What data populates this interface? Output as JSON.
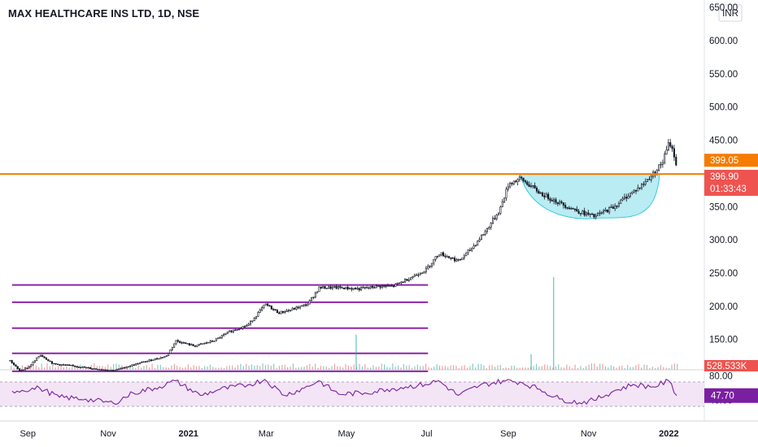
{
  "header": {
    "title": "MAX HEALTHCARE INS LTD, 1D, NSE"
  },
  "axis": {
    "currency": "INR"
  },
  "price_tags": {
    "level": "399.05",
    "last": "396.90",
    "countdown": "01:33:43",
    "volume": "528.533K"
  },
  "colors": {
    "up": "#26a69a",
    "down": "#ef5350",
    "candle": "#131722",
    "resistance": "#f57c00",
    "support": "#8e24aa",
    "cup_fill": "#b2ebf2",
    "cup_line": "#26c6da",
    "rsi": "#7b1fa2",
    "rsi_band": "#f3e5f5",
    "last_tag": "#ef5350",
    "level_tag": "#f57c00"
  },
  "chart_data": [
    {
      "type": "candlestick",
      "title": "MAX HEALTHCARE INS LTD, 1D, NSE",
      "ylim": [
        70,
        660
      ],
      "y_ticks": [
        "650.00",
        "600.00",
        "550.00",
        "500.00",
        "450.00",
        "400.00",
        "350.00",
        "300.00",
        "250.00",
        "200.00",
        "150.00",
        "100.00"
      ],
      "x_ticks": [
        {
          "label": "Sep",
          "bold": false
        },
        {
          "label": "Nov",
          "bold": false
        },
        {
          "label": "2021",
          "bold": true
        },
        {
          "label": "Mar",
          "bold": false
        },
        {
          "label": "May",
          "bold": false
        },
        {
          "label": "Jul",
          "bold": false
        },
        {
          "label": "Sep",
          "bold": false
        },
        {
          "label": "Nov",
          "bold": false
        },
        {
          "label": "2022",
          "bold": true
        }
      ],
      "x_tick_dates": [
        "2020-09-01",
        "2020-11-01",
        "2021-01-01",
        "2021-03-01",
        "2021-05-01",
        "2021-07-01",
        "2021-09-01",
        "2021-11-01",
        "2022-01-01"
      ],
      "x_range": [
        "2020-08-17",
        "2022-01-15"
      ],
      "price_path": [
        [
          "2020-08-18",
          118
        ],
        [
          "2020-08-25",
          103
        ],
        [
          "2020-09-01",
          108
        ],
        [
          "2020-09-10",
          127
        ],
        [
          "2020-09-20",
          113
        ],
        [
          "2020-10-05",
          110
        ],
        [
          "2020-10-20",
          106
        ],
        [
          "2020-11-05",
          103
        ],
        [
          "2020-11-20",
          112
        ],
        [
          "2020-12-05",
          120
        ],
        [
          "2020-12-15",
          125
        ],
        [
          "2020-12-22",
          148
        ],
        [
          "2021-01-05",
          140
        ],
        [
          "2021-01-20",
          148
        ],
        [
          "2021-02-01",
          162
        ],
        [
          "2021-02-15",
          172
        ],
        [
          "2021-02-28",
          203
        ],
        [
          "2021-03-10",
          190
        ],
        [
          "2021-03-20",
          195
        ],
        [
          "2021-04-01",
          203
        ],
        [
          "2021-04-10",
          228
        ],
        [
          "2021-04-25",
          228
        ],
        [
          "2021-05-10",
          226
        ],
        [
          "2021-05-25",
          230
        ],
        [
          "2021-06-05",
          230
        ],
        [
          "2021-06-15",
          240
        ],
        [
          "2021-06-30",
          255
        ],
        [
          "2021-07-10",
          280
        ],
        [
          "2021-07-25",
          268
        ],
        [
          "2021-08-05",
          290
        ],
        [
          "2021-08-15",
          315
        ],
        [
          "2021-08-25",
          345
        ],
        [
          "2021-09-01",
          385
        ],
        [
          "2021-09-10",
          392
        ],
        [
          "2021-09-25",
          370
        ],
        [
          "2021-10-10",
          355
        ],
        [
          "2021-10-25",
          342
        ],
        [
          "2021-11-05",
          335
        ],
        [
          "2021-11-20",
          350
        ],
        [
          "2021-12-01",
          368
        ],
        [
          "2021-12-10",
          380
        ],
        [
          "2021-12-20",
          400
        ],
        [
          "2021-12-27",
          418
        ],
        [
          "2022-01-01",
          448
        ],
        [
          "2022-01-05",
          425
        ],
        [
          "2022-01-07",
          397
        ]
      ],
      "resistance_level": 399.05,
      "last_price": 396.9,
      "support_lines": [
        {
          "start": "2020-08-20",
          "end": "2021-07-02",
          "value": 232
        },
        {
          "start": "2020-08-20",
          "end": "2021-07-02",
          "value": 206
        },
        {
          "start": "2020-08-20",
          "end": "2021-07-02",
          "value": 167
        },
        {
          "start": "2020-08-20",
          "end": "2021-07-02",
          "value": 129
        },
        {
          "start": "2020-08-20",
          "end": "2021-07-02",
          "value": 102
        }
      ],
      "cup_pattern": {
        "start": "2021-09-10",
        "bottom": "2021-11-05",
        "end": "2021-12-25",
        "rim": 399,
        "bottom_value": 335
      },
      "volume_spikes": [
        {
          "date": "2021-05-08",
          "value": 3.6
        },
        {
          "date": "2021-10-05",
          "value": 9.5
        },
        {
          "date": "2021-09-18",
          "value": 1.6
        }
      ],
      "volume_last": "528.533K"
    },
    {
      "type": "line",
      "name": "RSI",
      "ylim": [
        10,
        90
      ],
      "y_ticks": [
        "80.00",
        "40.00"
      ],
      "band": [
        30,
        70
      ],
      "last_value": "47.70",
      "path": [
        [
          "2020-08-20",
          55
        ],
        [
          "2020-09-10",
          60
        ],
        [
          "2020-09-25",
          45
        ],
        [
          "2020-10-15",
          42
        ],
        [
          "2020-11-05",
          35
        ],
        [
          "2020-11-20",
          52
        ],
        [
          "2020-12-10",
          62
        ],
        [
          "2020-12-22",
          72
        ],
        [
          "2021-01-10",
          48
        ],
        [
          "2021-01-25",
          58
        ],
        [
          "2021-02-15",
          65
        ],
        [
          "2021-02-28",
          74
        ],
        [
          "2021-03-15",
          48
        ],
        [
          "2021-03-30",
          60
        ],
        [
          "2021-04-10",
          72
        ],
        [
          "2021-04-25",
          50
        ],
        [
          "2021-05-15",
          52
        ],
        [
          "2021-06-01",
          58
        ],
        [
          "2021-06-15",
          62
        ],
        [
          "2021-06-30",
          66
        ],
        [
          "2021-07-10",
          72
        ],
        [
          "2021-07-25",
          48
        ],
        [
          "2021-08-10",
          64
        ],
        [
          "2021-08-28",
          72
        ],
        [
          "2021-09-10",
          70
        ],
        [
          "2021-09-25",
          58
        ],
        [
          "2021-10-10",
          42
        ],
        [
          "2021-10-25",
          36
        ],
        [
          "2021-11-05",
          40
        ],
        [
          "2021-11-20",
          55
        ],
        [
          "2021-12-05",
          66
        ],
        [
          "2021-12-20",
          62
        ],
        [
          "2022-01-01",
          72
        ],
        [
          "2022-01-07",
          47.7
        ]
      ]
    }
  ]
}
